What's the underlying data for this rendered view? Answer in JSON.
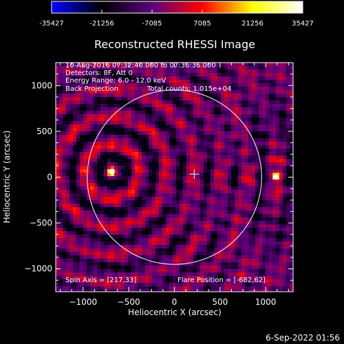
{
  "colorbar": {
    "ticks": [
      "-35427",
      "-21256",
      "-7085",
      "7085",
      "21256",
      "35427"
    ],
    "min": -35427,
    "max": 35427,
    "colors": [
      "#0000ff",
      "#000000",
      "#5a007f",
      "#ff0000",
      "#ffff00",
      "#ffffff"
    ]
  },
  "chart_data": {
    "type": "heatmap",
    "title": "Reconstructed RHESSI Image",
    "xlabel": "Heliocentric X (arcsec)",
    "ylabel": "Heliocentric Y (arcsec)",
    "xlim": [
      -1300,
      1300
    ],
    "ylim": [
      -1250,
      1250
    ],
    "xticks": [
      -1000,
      -500,
      0,
      500,
      1000
    ],
    "yticks": [
      -1000,
      -500,
      0,
      500,
      1000
    ],
    "xtick_labels": [
      "−1000",
      "−500",
      "0",
      "500",
      "1000"
    ],
    "ytick_labels": [
      "−1000",
      "−500",
      "0",
      "500",
      "1000"
    ],
    "sources": [
      {
        "x": -682,
        "y": 62
      },
      {
        "x": 1110,
        "y": 5
      }
    ],
    "crosshair": {
      "x": 217,
      "y": 33
    },
    "solar_limb_radius": 955,
    "annotations": {
      "time": "10-Aug-2016 07:32:40.000 to 07:36:36.000",
      "detectors": "Detectors: 8F, Att 0",
      "energy": "Energy Range: 6.0 - 12.0 keV",
      "method": "Back Projection",
      "counts": "Total counts: 1.015e+04",
      "spin_axis": "Spin Axis = [217,33]",
      "flare_position": "Flare Position = [-682,62]"
    }
  },
  "footer": {
    "date": "6-Sep-2022 01:56"
  }
}
